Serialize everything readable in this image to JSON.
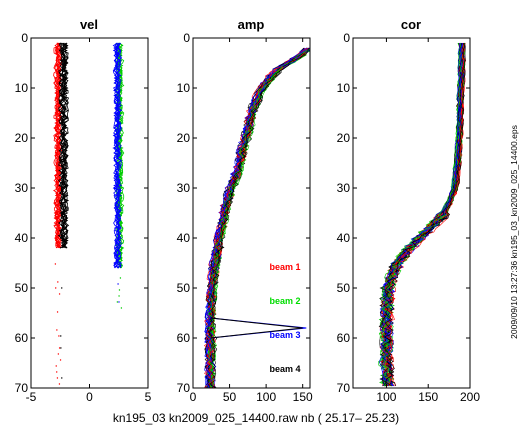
{
  "xlabel": "kn195_03  kn2009_025_14400.raw nb ( 25.17– 25.23)",
  "side_label": "2009/09/10 13:27:36  kn195_03_kn2009_025_14400.eps",
  "chart_data": [
    {
      "type": "line",
      "title": "vel",
      "xlim": [
        -5,
        5
      ],
      "ylim": [
        0,
        70
      ],
      "y_reversed": true,
      "xticks": [
        -5,
        0,
        5
      ],
      "yticks": [
        0,
        10,
        20,
        30,
        40,
        50,
        60,
        70
      ],
      "series": [
        {
          "color": "#ff0000",
          "profiles": 10,
          "center": -2.7,
          "spread": 0.25,
          "depth_max": 42,
          "sparse_until": 70
        },
        {
          "color": "#000000",
          "profiles": 10,
          "center": -2.2,
          "spread": 0.3,
          "depth_max": 42,
          "sparse_until": 70
        },
        {
          "color": "#00cc00",
          "profiles": 8,
          "center": 2.6,
          "spread": 0.25,
          "depth_max": 46,
          "sparse_until": 55
        },
        {
          "color": "#0000ff",
          "profiles": 8,
          "center": 2.4,
          "spread": 0.25,
          "depth_max": 46,
          "sparse_until": 55
        }
      ]
    },
    {
      "type": "line",
      "title": "amp",
      "xlim": [
        0,
        160
      ],
      "ylim": [
        0,
        70
      ],
      "y_reversed": true,
      "xticks": [
        0,
        50,
        100,
        150
      ],
      "yticks": [
        0,
        10,
        20,
        30,
        40,
        50,
        60,
        70
      ],
      "profile": {
        "depth": [
          2,
          3,
          4,
          5,
          6,
          8,
          10,
          12,
          15,
          18,
          20,
          22,
          25,
          28,
          30,
          33,
          36,
          40,
          45,
          50,
          55,
          60,
          65,
          70
        ],
        "value": [
          158,
          150,
          142,
          130,
          118,
          105,
          95,
          88,
          80,
          76,
          72,
          68,
          64,
          58,
          52,
          46,
          42,
          36,
          30,
          26,
          24,
          24,
          24,
          24
        ]
      },
      "spike": {
        "beam": "beam 3",
        "depth": 58,
        "value": 155
      },
      "legend": [
        {
          "label": "beam 1",
          "color": "#ff0000"
        },
        {
          "label": "beam 2",
          "color": "#00dd00"
        },
        {
          "label": "beam 3",
          "color": "#0000ff"
        },
        {
          "label": "beam 4",
          "color": "#000000"
        }
      ]
    },
    {
      "type": "line",
      "title": "cor",
      "xlim": [
        60,
        200
      ],
      "ylim": [
        0,
        70
      ],
      "y_reversed": true,
      "xticks": [
        100,
        150,
        200
      ],
      "yticks": [
        0,
        10,
        20,
        30,
        40,
        50,
        60,
        70
      ],
      "profile": {
        "depth": [
          1,
          5,
          10,
          15,
          20,
          25,
          30,
          33,
          36,
          38,
          40,
          42,
          44,
          46,
          48,
          50,
          55,
          60,
          65,
          70
        ],
        "value": [
          190,
          190,
          189,
          188,
          187,
          185,
          182,
          175,
          165,
          152,
          140,
          128,
          118,
          110,
          105,
          102,
          100,
          100,
          100,
          102
        ]
      }
    }
  ]
}
